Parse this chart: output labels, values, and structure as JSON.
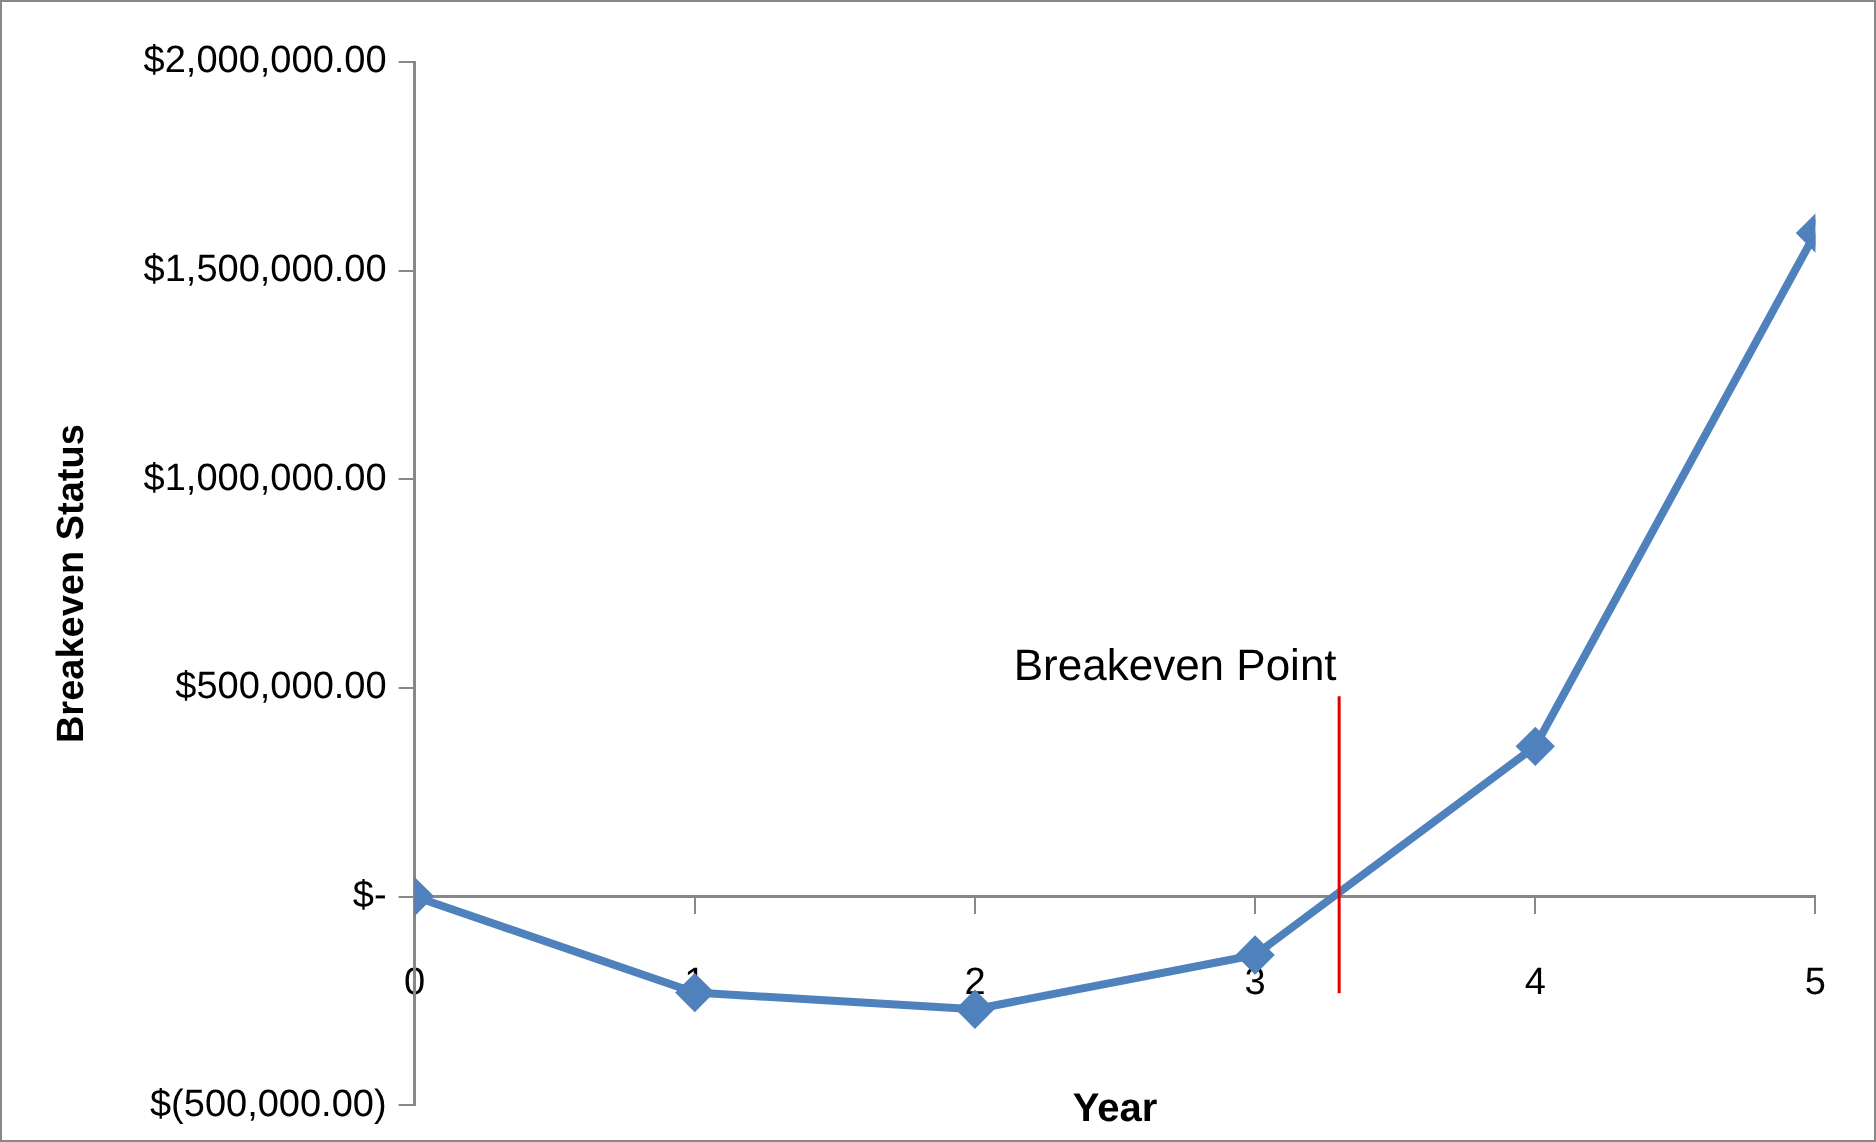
{
  "chart_data": {
    "type": "line",
    "xlabel": "Year",
    "ylabel": "Breakeven Status",
    "x": [
      0,
      1,
      2,
      3,
      4,
      5
    ],
    "series": [
      {
        "color": "#4f81bd",
        "values": [
          0,
          -230000,
          -270000,
          -140000,
          360000,
          1590000
        ]
      }
    ],
    "xlim": [
      0,
      5
    ],
    "xticks": [
      0,
      1,
      2,
      3,
      4,
      5
    ],
    "ylim": [
      -500000,
      2000000
    ],
    "yticks": [
      {
        "value": -500000,
        "label": "$(500,000.00)"
      },
      {
        "value": 0,
        "label": "$-"
      },
      {
        "value": 500000,
        "label": "$500,000.00"
      },
      {
        "value": 1000000,
        "label": "$1,000,000.00"
      },
      {
        "value": 1500000,
        "label": "$1,500,000.00"
      },
      {
        "value": 2000000,
        "label": "$2,000,000.00"
      }
    ],
    "ref_lines": [
      {
        "axis": "x",
        "value": 3.3,
        "label": "Breakeven Point",
        "color": "#e00000"
      }
    ],
    "grid": false,
    "legend": false,
    "marker": "diamond",
    "line_style": "solid"
  }
}
